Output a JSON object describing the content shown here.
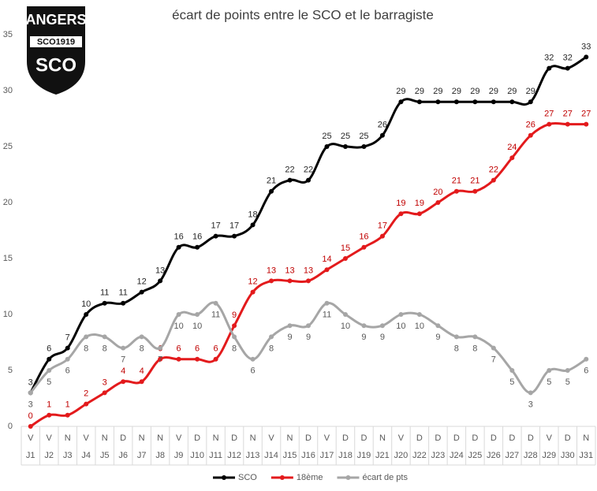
{
  "chart_data": {
    "type": "line",
    "title": "écart de points entre le SCO et le barragiste",
    "logo": {
      "top": "ANGERS",
      "band": "SCO1919",
      "crest": "SCO"
    },
    "categories": [
      "J1",
      "J2",
      "J3",
      "J4",
      "J5",
      "J6",
      "J7",
      "J8",
      "J9",
      "J10",
      "J11",
      "J12",
      "J13",
      "J14",
      "J15",
      "J16",
      "J17",
      "J18",
      "J19",
      "J21",
      "J20",
      "J22",
      "J23",
      "J24",
      "J25",
      "J26",
      "J27",
      "J28",
      "J29",
      "J30",
      "J31"
    ],
    "results": [
      "V",
      "V",
      "N",
      "V",
      "N",
      "D",
      "N",
      "N",
      "V",
      "D",
      "N",
      "D",
      "N",
      "V",
      "N",
      "D",
      "V",
      "D",
      "D",
      "N",
      "V",
      "D",
      "D",
      "D",
      "D",
      "D",
      "D",
      "D",
      "V",
      "D",
      "N"
    ],
    "series": [
      {
        "name": "SCO",
        "color": "#000000",
        "label_color": "#262626",
        "values": [
          3,
          6,
          7,
          10,
          11,
          11,
          12,
          13,
          16,
          16,
          17,
          17,
          18,
          21,
          22,
          22,
          25,
          25,
          25,
          26,
          29,
          29,
          29,
          29,
          29,
          29,
          29,
          29,
          32,
          32,
          33
        ]
      },
      {
        "name": "18ème",
        "color": "#e31a1c",
        "label_color": "#c00000",
        "values": [
          0,
          1,
          1,
          2,
          3,
          4,
          4,
          6,
          6,
          6,
          6,
          9,
          12,
          13,
          13,
          13,
          14,
          15,
          16,
          17,
          19,
          19,
          20,
          21,
          21,
          22,
          24,
          26,
          27,
          27,
          27
        ]
      },
      {
        "name": "écart de pts",
        "color": "#a6a6a6",
        "label_color": "#595959",
        "values": [
          3,
          5,
          6,
          8,
          8,
          7,
          8,
          7,
          10,
          10,
          11,
          8,
          6,
          8,
          9,
          9,
          11,
          10,
          9,
          9,
          10,
          10,
          9,
          8,
          8,
          7,
          5,
          3,
          5,
          5,
          6
        ]
      }
    ],
    "ylim": [
      0,
      35
    ],
    "yticks": [
      0,
      5,
      10,
      15,
      20,
      25,
      30,
      35
    ],
    "grid": false
  }
}
